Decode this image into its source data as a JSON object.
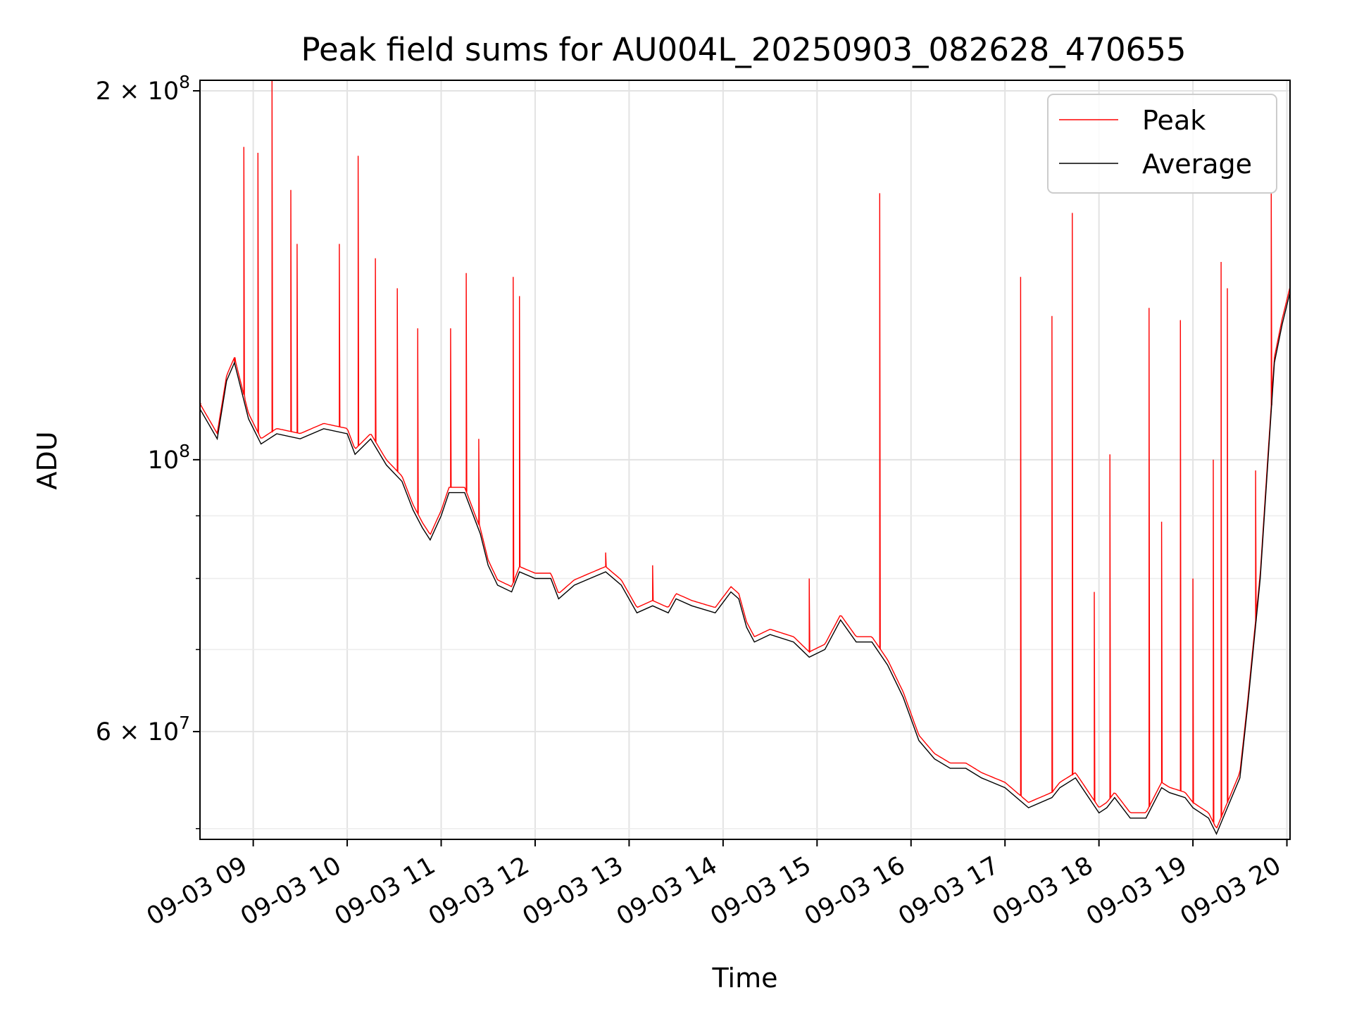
{
  "chart_data": {
    "type": "line",
    "title": "Peak field sums for AU004L_20250903_082628_470655",
    "xlabel": "Time",
    "ylabel": "ADU",
    "yscale": "log",
    "ylim": [
      49000000,
      204000000
    ],
    "xlim": [
      "2025-09-03 08:26",
      "2025-09-03 20:02"
    ],
    "grid": true,
    "legend_position": "top-right",
    "x_tick_labels": [
      "09-03 09",
      "09-03 10",
      "09-03 11",
      "09-03 12",
      "09-03 13",
      "09-03 14",
      "09-03 15",
      "09-03 16",
      "09-03 17",
      "09-03 18",
      "09-03 19",
      "09-03 20"
    ],
    "y_tick_labels": [
      {
        "value": 200000000,
        "base": "2 × 10",
        "exp": "8"
      },
      {
        "value": 100000000,
        "base": "10",
        "exp": "8"
      },
      {
        "value": 60000000,
        "base": "6 × 10",
        "exp": "7"
      }
    ],
    "y_minor_ticks": [
      50000000,
      70000000,
      80000000,
      90000000
    ],
    "series": [
      {
        "name": "Average",
        "color": "#000000",
        "x": [
          "2025-09-03 08:26",
          "2025-09-03 08:37",
          "2025-09-03 08:43",
          "2025-09-03 08:48",
          "2025-09-03 08:57",
          "2025-09-03 09:05",
          "2025-09-03 09:15",
          "2025-09-03 09:30",
          "2025-09-03 09:45",
          "2025-09-03 10:00",
          "2025-09-03 10:05",
          "2025-09-03 10:15",
          "2025-09-03 10:25",
          "2025-09-03 10:35",
          "2025-09-03 10:42",
          "2025-09-03 10:48",
          "2025-09-03 10:53",
          "2025-09-03 11:00",
          "2025-09-03 11:05",
          "2025-09-03 11:15",
          "2025-09-03 11:25",
          "2025-09-03 11:30",
          "2025-09-03 11:36",
          "2025-09-03 11:45",
          "2025-09-03 11:50",
          "2025-09-03 12:00",
          "2025-09-03 12:10",
          "2025-09-03 12:15",
          "2025-09-03 12:25",
          "2025-09-03 12:35",
          "2025-09-03 12:45",
          "2025-09-03 12:55",
          "2025-09-03 13:05",
          "2025-09-03 13:15",
          "2025-09-03 13:25",
          "2025-09-03 13:30",
          "2025-09-03 13:40",
          "2025-09-03 13:55",
          "2025-09-03 14:05",
          "2025-09-03 14:10",
          "2025-09-03 14:15",
          "2025-09-03 14:20",
          "2025-09-03 14:30",
          "2025-09-03 14:45",
          "2025-09-03 14:55",
          "2025-09-03 15:05",
          "2025-09-03 15:15",
          "2025-09-03 15:25",
          "2025-09-03 15:35",
          "2025-09-03 15:45",
          "2025-09-03 15:55",
          "2025-09-03 16:05",
          "2025-09-03 16:15",
          "2025-09-03 16:25",
          "2025-09-03 16:35",
          "2025-09-03 16:45",
          "2025-09-03 17:00",
          "2025-09-03 17:15",
          "2025-09-03 17:30",
          "2025-09-03 17:35",
          "2025-09-03 17:45",
          "2025-09-03 18:00",
          "2025-09-03 18:05",
          "2025-09-03 18:10",
          "2025-09-03 18:20",
          "2025-09-03 18:30",
          "2025-09-03 18:40",
          "2025-09-03 18:45",
          "2025-09-03 18:55",
          "2025-09-03 19:00",
          "2025-09-03 19:10",
          "2025-09-03 19:15",
          "2025-09-03 19:22",
          "2025-09-03 19:30",
          "2025-09-03 19:35",
          "2025-09-03 19:43",
          "2025-09-03 19:52",
          "2025-09-03 19:57",
          "2025-09-03 20:02"
        ],
        "values": [
          110000000,
          104000000,
          116000000,
          120000000,
          108000000,
          103000000,
          105000000,
          104000000,
          106000000,
          105000000,
          101000000,
          104000000,
          99000000,
          96000000,
          91000000,
          88000000,
          86000000,
          90000000,
          94000000,
          94000000,
          87000000,
          82000000,
          79000000,
          78000000,
          81000000,
          80000000,
          80000000,
          77000000,
          79000000,
          80000000,
          81000000,
          79000000,
          75000000,
          76000000,
          75000000,
          77000000,
          76000000,
          75000000,
          78000000,
          77000000,
          73000000,
          71000000,
          72000000,
          71000000,
          69000000,
          70000000,
          74000000,
          71000000,
          71000000,
          68000000,
          64000000,
          59000000,
          57000000,
          56000000,
          56000000,
          55000000,
          54000000,
          52000000,
          53000000,
          54000000,
          55000000,
          51500000,
          52000000,
          53000000,
          51000000,
          51000000,
          54000000,
          53500000,
          53000000,
          52000000,
          51000000,
          49500000,
          52000000,
          55000000,
          63000000,
          80000000,
          120000000,
          129000000,
          137000000
        ]
      },
      {
        "name": "Peak",
        "color": "#ff0000",
        "x": [
          "2025-09-03 08:26",
          "2025-09-03 08:48",
          "2025-09-03 08:54",
          "2025-09-03 09:03",
          "2025-09-03 09:12",
          "2025-09-03 09:24",
          "2025-09-03 09:28",
          "2025-09-03 09:55",
          "2025-09-03 10:07",
          "2025-09-03 10:18",
          "2025-09-03 10:32",
          "2025-09-03 10:45",
          "2025-09-03 11:06",
          "2025-09-03 11:16",
          "2025-09-03 11:24",
          "2025-09-03 11:46",
          "2025-09-03 11:50",
          "2025-09-03 12:45",
          "2025-09-03 13:15",
          "2025-09-03 14:55",
          "2025-09-03 15:40",
          "2025-09-03 17:10",
          "2025-09-03 17:30",
          "2025-09-03 17:43",
          "2025-09-03 17:57",
          "2025-09-03 18:07",
          "2025-09-03 18:32",
          "2025-09-03 18:40",
          "2025-09-03 18:52",
          "2025-09-03 19:00",
          "2025-09-03 19:13",
          "2025-09-03 19:18",
          "2025-09-03 19:22",
          "2025-09-03 19:40",
          "2025-09-03 19:50"
        ],
        "values": [
          111000000,
          120000000,
          180000000,
          178000000,
          204000000,
          166000000,
          150000000,
          150000000,
          177000000,
          146000000,
          138000000,
          128000000,
          128000000,
          142000000,
          104000000,
          141000000,
          136000000,
          84000000,
          82000000,
          80000000,
          165000000,
          141000000,
          131000000,
          159000000,
          78000000,
          101000000,
          133000000,
          89000000,
          130000000,
          80000000,
          100000000,
          145000000,
          138000000,
          98000000,
          165000000
        ]
      }
    ]
  }
}
